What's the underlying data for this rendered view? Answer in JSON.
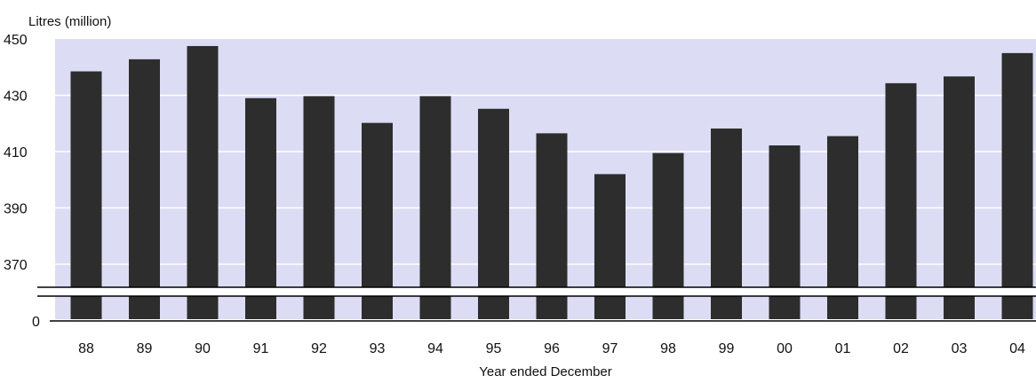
{
  "chart_data": {
    "type": "bar",
    "title": "",
    "ylabel": "Litres (million)",
    "xlabel": "Year ended December",
    "categories": [
      "88",
      "89",
      "90",
      "91",
      "92",
      "93",
      "94",
      "95",
      "96",
      "97",
      "98",
      "99",
      "00",
      "01",
      "02",
      "03",
      "04"
    ],
    "values": [
      438.5,
      442.8,
      447.5,
      429,
      429.7,
      420.2,
      429.7,
      425.2,
      416.5,
      402,
      409.5,
      418.2,
      412.2,
      415.5,
      434.3,
      436.7,
      445
    ],
    "ylim": [
      360,
      450
    ],
    "yticks": [
      "450",
      "430",
      "410",
      "390",
      "370"
    ],
    "axis_break": true,
    "axis_break_tick": "0",
    "grid": true,
    "colors": {
      "bar": "#2d2d2d",
      "plot_background": "#dcdcf4",
      "gridline": "#ffffff",
      "axis": "#000000"
    }
  }
}
